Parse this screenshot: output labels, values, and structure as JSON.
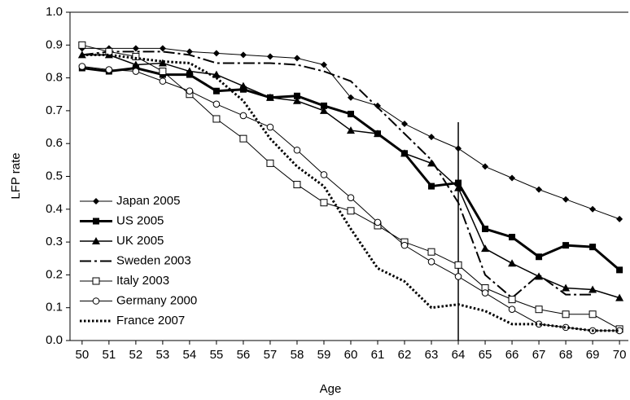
{
  "chart_data": {
    "type": "line",
    "xlabel": "Age",
    "ylabel": "LFP rate",
    "x": [
      50,
      51,
      52,
      53,
      54,
      55,
      56,
      57,
      58,
      59,
      60,
      61,
      62,
      63,
      64,
      65,
      66,
      67,
      68,
      69,
      70
    ],
    "xlim": [
      49.55,
      70.33
    ],
    "xticks": [
      50,
      51,
      52,
      53,
      54,
      55,
      56,
      57,
      58,
      59,
      60,
      61,
      62,
      63,
      64,
      65,
      66,
      67,
      68,
      69,
      70
    ],
    "ylim": [
      0,
      1
    ],
    "yticks": [
      {
        "value": 0,
        "label": "0.0"
      },
      0.1,
      0.2,
      0.3,
      0.4,
      0.5,
      0.6,
      0.7,
      0.8,
      0.9,
      {
        "value": 1,
        "label": "1.0"
      }
    ],
    "legend": "lower-left",
    "reference_line": {
      "x": 64,
      "ymax": 0.665
    },
    "series": [
      {
        "name": "Japan 2005",
        "color": "#000000",
        "marker": "diamond",
        "linestyle": "solid",
        "linewidth": 1,
        "values": [
          0.89,
          0.89,
          0.89,
          0.89,
          0.88,
          0.875,
          0.87,
          0.865,
          0.86,
          0.84,
          0.74,
          0.715,
          0.66,
          0.62,
          0.585,
          0.53,
          0.495,
          0.46,
          0.43,
          0.4,
          0.37
        ]
      },
      {
        "name": "US 2005",
        "color": "#000000",
        "marker": "square",
        "linestyle": "solid",
        "linewidth": 3,
        "values": [
          0.83,
          0.82,
          0.83,
          0.81,
          0.81,
          0.76,
          0.765,
          0.74,
          0.745,
          0.715,
          0.69,
          0.63,
          0.57,
          0.47,
          0.48,
          0.34,
          0.315,
          0.255,
          0.29,
          0.285,
          0.215
        ]
      },
      {
        "name": "UK 2005",
        "color": "#000000",
        "marker": "triangle",
        "linestyle": "solid",
        "linewidth": 1.5,
        "values": [
          0.87,
          0.87,
          0.84,
          0.845,
          0.82,
          0.81,
          0.775,
          0.74,
          0.73,
          0.7,
          0.64,
          0.63,
          0.57,
          0.54,
          0.465,
          0.28,
          0.235,
          0.195,
          0.16,
          0.155,
          0.13
        ]
      },
      {
        "name": "Sweden 2003",
        "color": "#000000",
        "marker": "none",
        "linestyle": "dash-dot",
        "linewidth": 2,
        "values": [
          0.87,
          0.88,
          0.88,
          0.88,
          0.87,
          0.845,
          0.845,
          0.845,
          0.84,
          0.82,
          0.79,
          0.71,
          0.63,
          0.55,
          0.42,
          0.2,
          0.13,
          0.2,
          0.14,
          0.14,
          null
        ]
      },
      {
        "name": "Italy 2003",
        "color": "#000000",
        "marker": "open-square",
        "linestyle": "solid",
        "linewidth": 1,
        "values": [
          0.9,
          0.88,
          0.865,
          0.82,
          0.75,
          0.675,
          0.615,
          0.54,
          0.475,
          0.42,
          0.395,
          0.35,
          0.3,
          0.27,
          0.23,
          0.16,
          0.125,
          0.095,
          0.08,
          0.08,
          0.035
        ]
      },
      {
        "name": "Germany 2000",
        "color": "#000000",
        "marker": "open-circle",
        "linestyle": "solid",
        "linewidth": 1,
        "values": [
          0.835,
          0.825,
          0.82,
          0.79,
          0.76,
          0.72,
          0.685,
          0.65,
          0.58,
          0.505,
          0.435,
          0.36,
          0.29,
          0.24,
          0.195,
          0.145,
          0.095,
          0.05,
          0.04,
          0.03,
          0.03
        ]
      },
      {
        "name": "France 2007",
        "color": "#000000",
        "marker": "none",
        "linestyle": "dotted",
        "linewidth": 3,
        "values": [
          0.87,
          0.87,
          0.86,
          0.85,
          0.845,
          0.8,
          0.73,
          0.615,
          0.53,
          0.47,
          0.34,
          0.22,
          0.18,
          0.1,
          0.11,
          0.09,
          0.05,
          0.05,
          0.04,
          0.03,
          0.03
        ]
      }
    ]
  }
}
